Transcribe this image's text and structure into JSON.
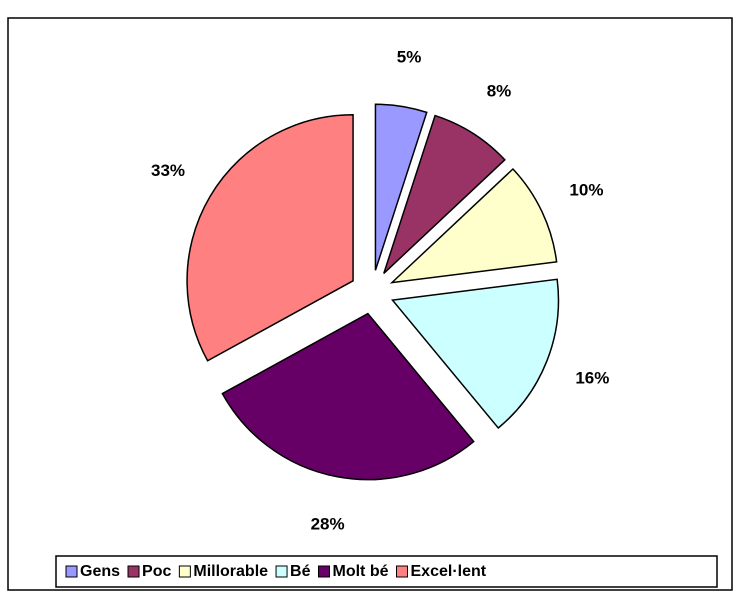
{
  "chart_data": {
    "type": "pie",
    "categories": [
      "Gens",
      "Poc",
      "Millorable",
      "Bé",
      "Molt bé",
      "Excel·lent"
    ],
    "values": [
      5,
      8,
      10,
      16,
      28,
      33
    ],
    "value_labels": [
      "5%",
      "8%",
      "10%",
      "16%",
      "28%",
      "33%"
    ],
    "colors": [
      "#9999ff",
      "#993366",
      "#ffffcc",
      "#ccffff",
      "#660066",
      "#ff8080"
    ],
    "legend": "bottom"
  }
}
